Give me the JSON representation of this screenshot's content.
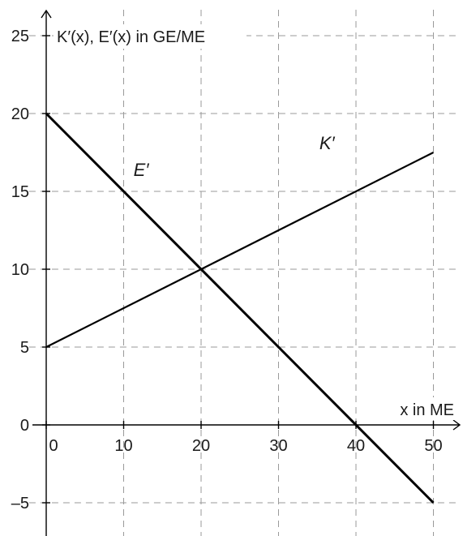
{
  "chart_data": {
    "type": "line",
    "title": "",
    "xlabel": "x in ME",
    "ylabel": "K′(x), E′(x) in GE/ME",
    "xlim": [
      -2,
      52
    ],
    "ylim": [
      -6.5,
      26
    ],
    "x_ticks": [
      0,
      10,
      20,
      30,
      40,
      50
    ],
    "x_tick_labels": [
      "0",
      "10",
      "20",
      "30",
      "40",
      "50"
    ],
    "y_ticks": [
      -5,
      0,
      5,
      10,
      15,
      20,
      25
    ],
    "y_tick_labels": [
      "–5",
      "0",
      "5",
      "10",
      "15",
      "20",
      "25"
    ],
    "grid": true,
    "series": [
      {
        "name": "K′",
        "x": [
          0,
          50
        ],
        "y": [
          5,
          17.5
        ],
        "label_at": [
          35,
          17.7
        ]
      },
      {
        "name": "E′",
        "x": [
          0,
          50
        ],
        "y": [
          20,
          -5
        ],
        "label_at": [
          11,
          16
        ]
      }
    ]
  }
}
